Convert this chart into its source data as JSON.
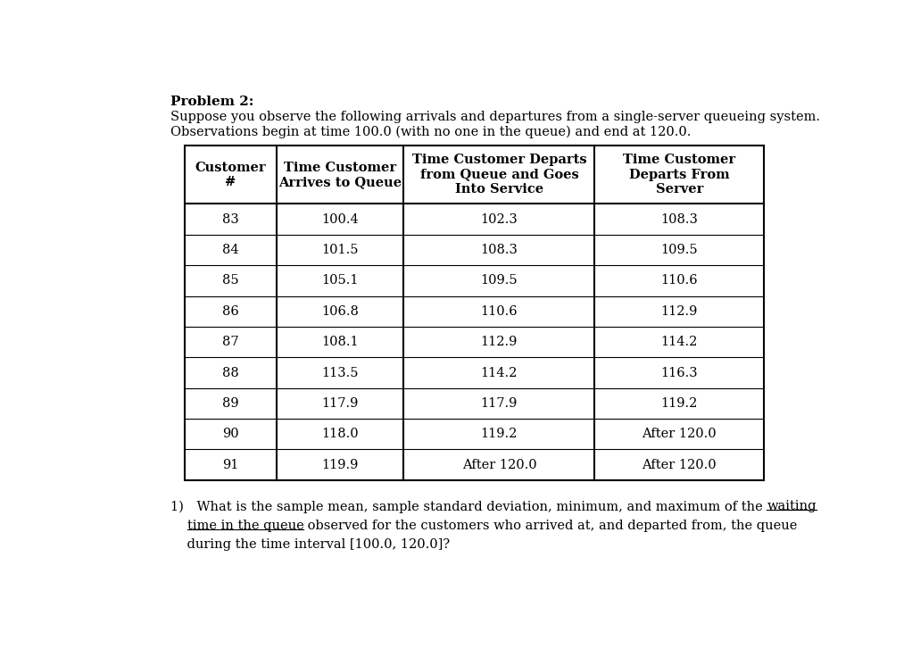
{
  "title": "Problem 2:",
  "intro_line1": "Suppose you observe the following arrivals and departures from a single-server queueing system.",
  "intro_line2": "Observations begin at time 100.0 (with no one in the queue) and end at 120.0.",
  "col_headers": [
    [
      "Customer",
      "#"
    ],
    [
      "Time Customer",
      "Arrives to Queue"
    ],
    [
      "Time Customer Departs",
      "from Queue and Goes",
      "Into Service"
    ],
    [
      "Time Customer",
      "Departs From",
      "Server"
    ]
  ],
  "rows": [
    [
      "83",
      "100.4",
      "102.3",
      "108.3"
    ],
    [
      "84",
      "101.5",
      "108.3",
      "109.5"
    ],
    [
      "85",
      "105.1",
      "109.5",
      "110.6"
    ],
    [
      "86",
      "106.8",
      "110.6",
      "112.9"
    ],
    [
      "87",
      "108.1",
      "112.9",
      "114.2"
    ],
    [
      "88",
      "113.5",
      "114.2",
      "116.3"
    ],
    [
      "89",
      "117.9",
      "117.9",
      "119.2"
    ],
    [
      "90",
      "118.0",
      "119.2",
      "After 120.0"
    ],
    [
      "91",
      "119.9",
      "After 120.0",
      "After 120.0"
    ]
  ],
  "bg_color": "#ffffff",
  "text_color": "#000000",
  "font_family": "serif",
  "title_fontsize": 11,
  "body_fontsize": 10.5,
  "table_fontsize": 10.5,
  "q_line1_normal": "1) What is the sample mean, sample standard deviation, minimum, and maximum of the ",
  "q_line1_underline": "waiting",
  "q_line2_indent": "    ",
  "q_line2_underline": "time in the queue",
  "q_line2_normal": " observed for the customers who arrived at, and departed from, the queue",
  "q_line3": "    during the time interval [100.0, 120.0]?"
}
